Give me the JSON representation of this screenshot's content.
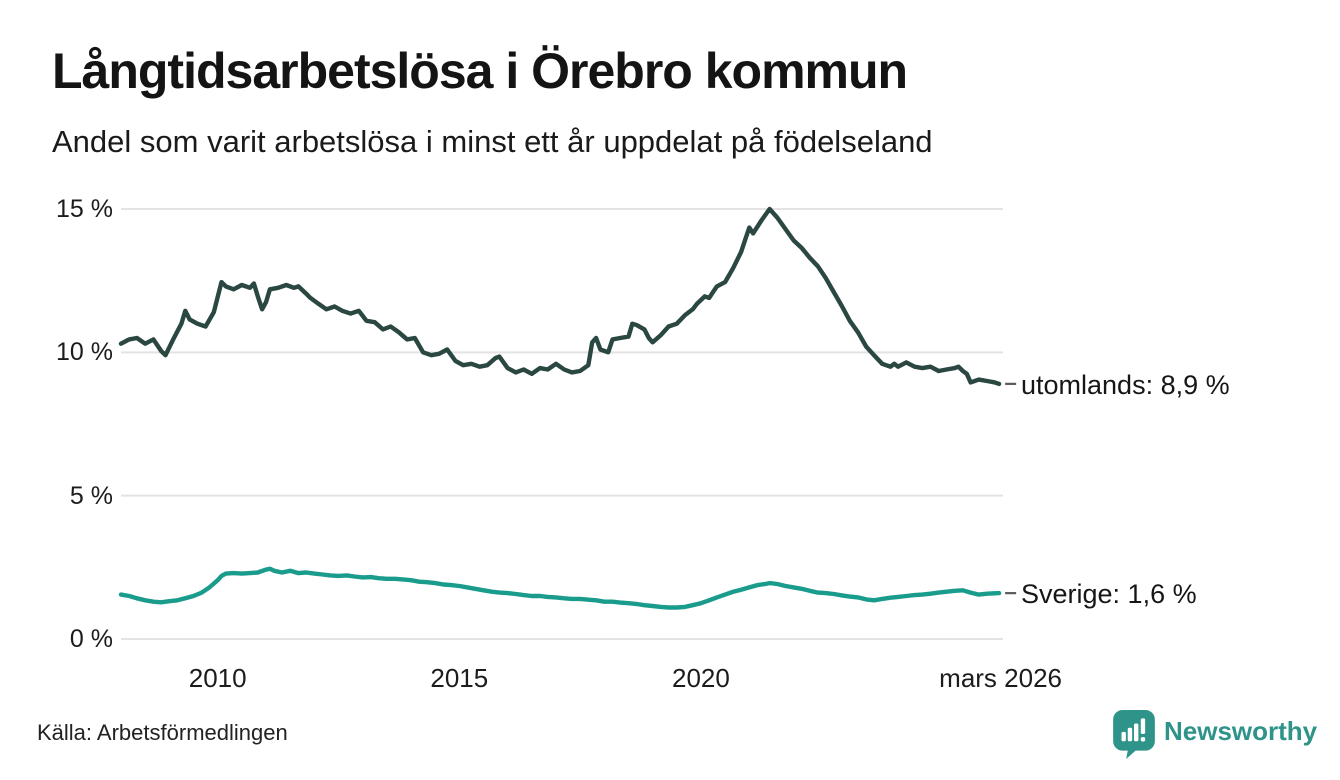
{
  "header": {
    "title": "Långtidsarbetslösa i Örebro kommun",
    "subtitle": "Andel som varit arbetslösa i minst ett år uppdelat på födelseland"
  },
  "footer": {
    "source": "Källa: Arbetsförmedlingen",
    "brand": "Newsworthy",
    "brand_color": "#2e9389",
    "logo_icon": "chart-speech-bubble-icon"
  },
  "colors": {
    "grid": "#e3e3e3",
    "leader_dash": "#5a5a5a",
    "text": "#1c1c1c"
  },
  "chart_data": {
    "type": "line",
    "title": "Långtidsarbetslösa i Örebro kommun",
    "subtitle": "Andel som varit arbetslösa i minst ett år uppdelat på födelseland",
    "xlabel": "",
    "ylabel": "",
    "grid": true,
    "legend_position": "line-end-labels",
    "x_axis": {
      "range": [
        2008.0,
        2026.25
      ],
      "ticks": [
        {
          "x": 2010,
          "label": "2010"
        },
        {
          "x": 2015,
          "label": "2015"
        },
        {
          "x": 2020,
          "label": "2020"
        },
        {
          "x": 2026.2,
          "label": "mars 2026"
        }
      ]
    },
    "y_axis": {
      "range": [
        0,
        15
      ],
      "unit": "%",
      "ticks": [
        {
          "y": 0,
          "label": "0 %"
        },
        {
          "y": 5,
          "label": "5 %"
        },
        {
          "y": 10,
          "label": "10 %"
        },
        {
          "y": 15,
          "label": "15 %"
        }
      ]
    },
    "series": [
      {
        "name": "utomlands",
        "end_label": "utomlands: 8,9 %",
        "end_value": "8,9 %",
        "color": "#2b4742",
        "points": [
          [
            2008.0,
            10.3
          ],
          [
            2008.17,
            10.45
          ],
          [
            2008.33,
            10.5
          ],
          [
            2008.5,
            10.3
          ],
          [
            2008.67,
            10.45
          ],
          [
            2008.83,
            10.05
          ],
          [
            2008.92,
            9.9
          ],
          [
            2009.08,
            10.45
          ],
          [
            2009.25,
            11.0
          ],
          [
            2009.33,
            11.45
          ],
          [
            2009.42,
            11.15
          ],
          [
            2009.58,
            11.0
          ],
          [
            2009.75,
            10.9
          ],
          [
            2009.92,
            11.4
          ],
          [
            2010.08,
            12.45
          ],
          [
            2010.17,
            12.3
          ],
          [
            2010.33,
            12.2
          ],
          [
            2010.5,
            12.35
          ],
          [
            2010.67,
            12.25
          ],
          [
            2010.75,
            12.4
          ],
          [
            2010.83,
            11.95
          ],
          [
            2010.92,
            11.5
          ],
          [
            2011.0,
            11.75
          ],
          [
            2011.08,
            12.2
          ],
          [
            2011.25,
            12.25
          ],
          [
            2011.42,
            12.35
          ],
          [
            2011.58,
            12.25
          ],
          [
            2011.67,
            12.3
          ],
          [
            2011.83,
            12.05
          ],
          [
            2011.92,
            11.9
          ],
          [
            2012.08,
            11.7
          ],
          [
            2012.25,
            11.5
          ],
          [
            2012.42,
            11.6
          ],
          [
            2012.58,
            11.45
          ],
          [
            2012.75,
            11.35
          ],
          [
            2012.92,
            11.45
          ],
          [
            2013.08,
            11.1
          ],
          [
            2013.25,
            11.05
          ],
          [
            2013.42,
            10.8
          ],
          [
            2013.58,
            10.9
          ],
          [
            2013.75,
            10.7
          ],
          [
            2013.92,
            10.45
          ],
          [
            2014.08,
            10.5
          ],
          [
            2014.25,
            10.0
          ],
          [
            2014.42,
            9.9
          ],
          [
            2014.58,
            9.95
          ],
          [
            2014.75,
            10.1
          ],
          [
            2014.92,
            9.7
          ],
          [
            2015.08,
            9.55
          ],
          [
            2015.25,
            9.6
          ],
          [
            2015.42,
            9.5
          ],
          [
            2015.58,
            9.55
          ],
          [
            2015.75,
            9.8
          ],
          [
            2015.83,
            9.85
          ],
          [
            2016.0,
            9.45
          ],
          [
            2016.17,
            9.3
          ],
          [
            2016.33,
            9.4
          ],
          [
            2016.5,
            9.25
          ],
          [
            2016.67,
            9.45
          ],
          [
            2016.83,
            9.4
          ],
          [
            2017.0,
            9.6
          ],
          [
            2017.17,
            9.4
          ],
          [
            2017.33,
            9.3
          ],
          [
            2017.5,
            9.35
          ],
          [
            2017.67,
            9.55
          ],
          [
            2017.75,
            10.35
          ],
          [
            2017.83,
            10.5
          ],
          [
            2017.92,
            10.1
          ],
          [
            2018.08,
            10.0
          ],
          [
            2018.17,
            10.45
          ],
          [
            2018.33,
            10.5
          ],
          [
            2018.5,
            10.55
          ],
          [
            2018.58,
            11.0
          ],
          [
            2018.67,
            10.95
          ],
          [
            2018.83,
            10.8
          ],
          [
            2018.92,
            10.5
          ],
          [
            2019.0,
            10.35
          ],
          [
            2019.17,
            10.6
          ],
          [
            2019.33,
            10.9
          ],
          [
            2019.5,
            11.0
          ],
          [
            2019.67,
            11.3
          ],
          [
            2019.83,
            11.5
          ],
          [
            2019.92,
            11.7
          ],
          [
            2020.08,
            11.95
          ],
          [
            2020.17,
            11.9
          ],
          [
            2020.25,
            12.1
          ],
          [
            2020.33,
            12.3
          ],
          [
            2020.5,
            12.45
          ],
          [
            2020.67,
            12.95
          ],
          [
            2020.83,
            13.5
          ],
          [
            2020.92,
            13.95
          ],
          [
            2021.0,
            14.35
          ],
          [
            2021.08,
            14.15
          ],
          [
            2021.25,
            14.6
          ],
          [
            2021.42,
            15.0
          ],
          [
            2021.58,
            14.7
          ],
          [
            2021.75,
            14.3
          ],
          [
            2021.92,
            13.9
          ],
          [
            2022.08,
            13.65
          ],
          [
            2022.25,
            13.3
          ],
          [
            2022.42,
            13.0
          ],
          [
            2022.58,
            12.6
          ],
          [
            2022.75,
            12.1
          ],
          [
            2022.92,
            11.6
          ],
          [
            2023.08,
            11.1
          ],
          [
            2023.25,
            10.7
          ],
          [
            2023.42,
            10.2
          ],
          [
            2023.58,
            9.9
          ],
          [
            2023.75,
            9.6
          ],
          [
            2023.92,
            9.5
          ],
          [
            2024.0,
            9.6
          ],
          [
            2024.08,
            9.5
          ],
          [
            2024.25,
            9.65
          ],
          [
            2024.42,
            9.5
          ],
          [
            2024.58,
            9.45
          ],
          [
            2024.75,
            9.5
          ],
          [
            2024.92,
            9.35
          ],
          [
            2025.08,
            9.4
          ],
          [
            2025.25,
            9.45
          ],
          [
            2025.33,
            9.5
          ],
          [
            2025.42,
            9.35
          ],
          [
            2025.5,
            9.25
          ],
          [
            2025.58,
            8.95
          ],
          [
            2025.75,
            9.05
          ],
          [
            2025.92,
            9.0
          ],
          [
            2026.08,
            8.95
          ],
          [
            2026.17,
            8.9
          ]
        ]
      },
      {
        "name": "Sverige",
        "end_label": "Sverige: 1,6 %",
        "end_value": "1,6 %",
        "color": "#1a9c8c",
        "points": [
          [
            2008.0,
            1.55
          ],
          [
            2008.17,
            1.5
          ],
          [
            2008.33,
            1.42
          ],
          [
            2008.5,
            1.35
          ],
          [
            2008.67,
            1.3
          ],
          [
            2008.83,
            1.28
          ],
          [
            2009.0,
            1.32
          ],
          [
            2009.17,
            1.35
          ],
          [
            2009.33,
            1.42
          ],
          [
            2009.5,
            1.5
          ],
          [
            2009.67,
            1.62
          ],
          [
            2009.83,
            1.8
          ],
          [
            2010.0,
            2.05
          ],
          [
            2010.08,
            2.2
          ],
          [
            2010.17,
            2.28
          ],
          [
            2010.33,
            2.3
          ],
          [
            2010.5,
            2.28
          ],
          [
            2010.67,
            2.3
          ],
          [
            2010.83,
            2.32
          ],
          [
            2011.0,
            2.42
          ],
          [
            2011.08,
            2.45
          ],
          [
            2011.17,
            2.38
          ],
          [
            2011.33,
            2.32
          ],
          [
            2011.5,
            2.38
          ],
          [
            2011.67,
            2.3
          ],
          [
            2011.83,
            2.32
          ],
          [
            2012.0,
            2.28
          ],
          [
            2012.17,
            2.25
          ],
          [
            2012.33,
            2.22
          ],
          [
            2012.5,
            2.2
          ],
          [
            2012.67,
            2.22
          ],
          [
            2012.83,
            2.18
          ],
          [
            2013.0,
            2.15
          ],
          [
            2013.17,
            2.16
          ],
          [
            2013.33,
            2.12
          ],
          [
            2013.5,
            2.1
          ],
          [
            2013.67,
            2.1
          ],
          [
            2013.83,
            2.08
          ],
          [
            2014.0,
            2.05
          ],
          [
            2014.17,
            2.0
          ],
          [
            2014.33,
            1.98
          ],
          [
            2014.5,
            1.95
          ],
          [
            2014.67,
            1.9
          ],
          [
            2014.83,
            1.88
          ],
          [
            2015.0,
            1.85
          ],
          [
            2015.17,
            1.8
          ],
          [
            2015.33,
            1.75
          ],
          [
            2015.5,
            1.7
          ],
          [
            2015.67,
            1.65
          ],
          [
            2015.83,
            1.62
          ],
          [
            2016.0,
            1.6
          ],
          [
            2016.17,
            1.57
          ],
          [
            2016.33,
            1.53
          ],
          [
            2016.5,
            1.5
          ],
          [
            2016.67,
            1.5
          ],
          [
            2016.83,
            1.47
          ],
          [
            2017.0,
            1.45
          ],
          [
            2017.17,
            1.42
          ],
          [
            2017.33,
            1.4
          ],
          [
            2017.5,
            1.4
          ],
          [
            2017.67,
            1.37
          ],
          [
            2017.83,
            1.35
          ],
          [
            2018.0,
            1.3
          ],
          [
            2018.17,
            1.3
          ],
          [
            2018.33,
            1.27
          ],
          [
            2018.5,
            1.25
          ],
          [
            2018.67,
            1.22
          ],
          [
            2018.83,
            1.18
          ],
          [
            2019.0,
            1.15
          ],
          [
            2019.17,
            1.12
          ],
          [
            2019.33,
            1.1
          ],
          [
            2019.5,
            1.1
          ],
          [
            2019.67,
            1.12
          ],
          [
            2019.83,
            1.18
          ],
          [
            2020.0,
            1.25
          ],
          [
            2020.17,
            1.35
          ],
          [
            2020.33,
            1.45
          ],
          [
            2020.5,
            1.55
          ],
          [
            2020.67,
            1.65
          ],
          [
            2020.83,
            1.72
          ],
          [
            2021.0,
            1.8
          ],
          [
            2021.17,
            1.88
          ],
          [
            2021.33,
            1.92
          ],
          [
            2021.42,
            1.95
          ],
          [
            2021.58,
            1.92
          ],
          [
            2021.75,
            1.85
          ],
          [
            2021.92,
            1.8
          ],
          [
            2022.08,
            1.75
          ],
          [
            2022.25,
            1.68
          ],
          [
            2022.42,
            1.62
          ],
          [
            2022.58,
            1.6
          ],
          [
            2022.75,
            1.57
          ],
          [
            2022.92,
            1.52
          ],
          [
            2023.08,
            1.48
          ],
          [
            2023.25,
            1.45
          ],
          [
            2023.42,
            1.38
          ],
          [
            2023.58,
            1.35
          ],
          [
            2023.75,
            1.4
          ],
          [
            2023.92,
            1.44
          ],
          [
            2024.08,
            1.47
          ],
          [
            2024.25,
            1.5
          ],
          [
            2024.42,
            1.53
          ],
          [
            2024.58,
            1.55
          ],
          [
            2024.75,
            1.58
          ],
          [
            2024.92,
            1.62
          ],
          [
            2025.08,
            1.65
          ],
          [
            2025.25,
            1.68
          ],
          [
            2025.42,
            1.7
          ],
          [
            2025.58,
            1.62
          ],
          [
            2025.75,
            1.55
          ],
          [
            2025.92,
            1.58
          ],
          [
            2026.17,
            1.6
          ]
        ]
      }
    ]
  }
}
